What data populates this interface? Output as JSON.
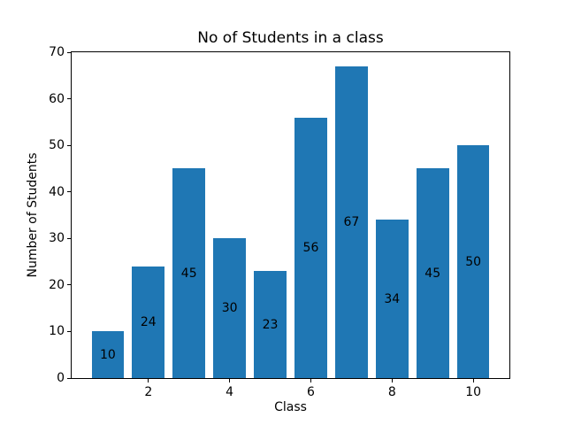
{
  "chart_data": {
    "type": "bar",
    "title": "No of Students in a class",
    "xlabel": "Class",
    "ylabel": "Number of Students",
    "categories": [
      1,
      2,
      3,
      4,
      5,
      6,
      7,
      8,
      9,
      10
    ],
    "values": [
      10,
      24,
      45,
      30,
      23,
      56,
      67,
      34,
      45,
      50
    ],
    "bar_labels_shown": true,
    "bar_label_position": "middle",
    "bar_color": "#1f77b4",
    "bar_width": 0.8,
    "xlim": [
      0.11,
      10.89
    ],
    "ylim": [
      0,
      70
    ],
    "yticks": [
      0,
      10,
      20,
      30,
      40,
      50,
      60,
      70
    ],
    "xticks": [
      2,
      4,
      6,
      8,
      10
    ],
    "grid": false,
    "legend": null,
    "background_color": "#ffffff",
    "text_color": "#000000"
  }
}
